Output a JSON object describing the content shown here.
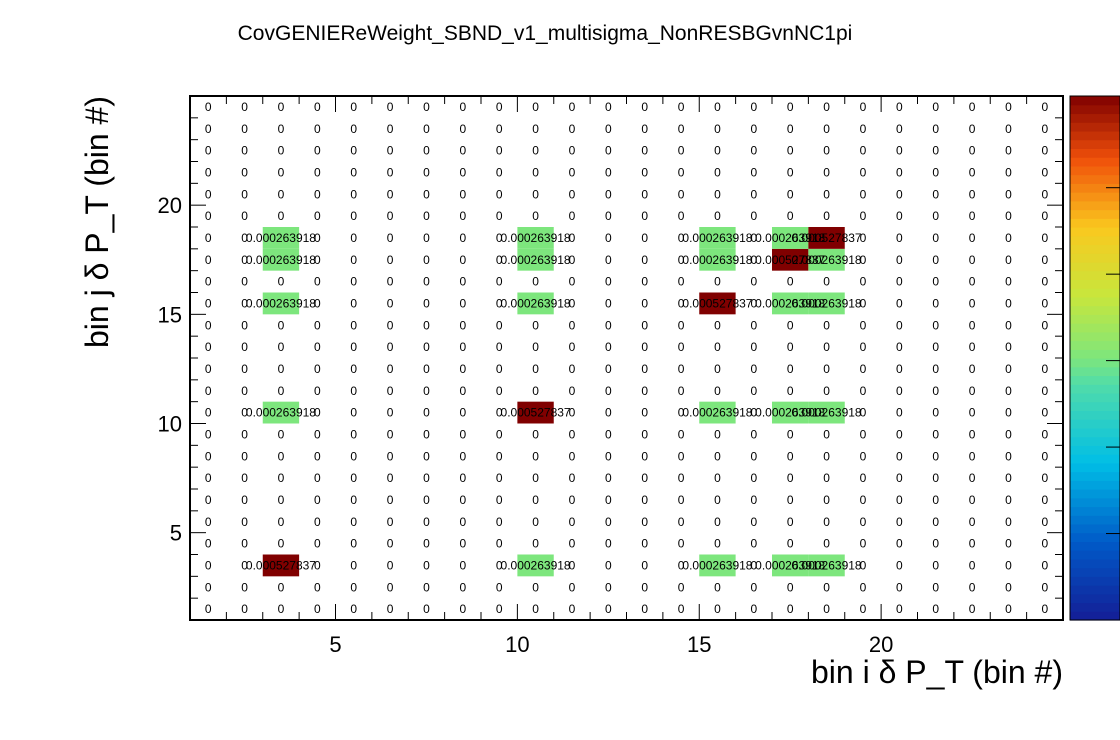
{
  "chart_data": {
    "type": "heatmap",
    "title": "CovGENIEReWeight_SBND_v1_multisigma_NonRESBGvnNC1pi",
    "xlabel": "bin i δ P_T (bin #)",
    "ylabel": "bin j δ P_T (bin #)",
    "x_range": [
      1,
      25
    ],
    "y_range": [
      1,
      25
    ],
    "x_ticks": [
      "5",
      "10",
      "15",
      "20"
    ],
    "y_ticks": [
      "5",
      "10",
      "15",
      "20"
    ],
    "z_range": [
      0,
      0.000527837
    ],
    "colorscale": "rainbow",
    "grid": false,
    "cell_labels": true,
    "nonzero_cells": [
      {
        "i": 3,
        "j": 3,
        "value": 0.000527837,
        "label": "0.000527837"
      },
      {
        "i": 10,
        "j": 3,
        "value": 0.000263918,
        "label": "0.000263918"
      },
      {
        "i": 15,
        "j": 3,
        "value": 0.000263918,
        "label": "0.000263918"
      },
      {
        "i": 17,
        "j": 3,
        "value": 0.000263918,
        "label": "0.000263918"
      },
      {
        "i": 18,
        "j": 3,
        "value": 0.000263918,
        "label": "0.000263918"
      },
      {
        "i": 3,
        "j": 10,
        "value": 0.000263918,
        "label": "0.000263918"
      },
      {
        "i": 10,
        "j": 10,
        "value": 0.000527837,
        "label": "0.000527837"
      },
      {
        "i": 15,
        "j": 10,
        "value": 0.000263918,
        "label": "0.000263918"
      },
      {
        "i": 17,
        "j": 10,
        "value": 0.000263918,
        "label": "0.000263918"
      },
      {
        "i": 18,
        "j": 10,
        "value": 0.000263918,
        "label": "0.000263918"
      },
      {
        "i": 3,
        "j": 15,
        "value": 0.000263918,
        "label": "0.000263918"
      },
      {
        "i": 10,
        "j": 15,
        "value": 0.000263918,
        "label": "0.000263918"
      },
      {
        "i": 15,
        "j": 15,
        "value": 0.000527837,
        "label": "0.000527837"
      },
      {
        "i": 17,
        "j": 15,
        "value": 0.000263918,
        "label": "0.000263918"
      },
      {
        "i": 18,
        "j": 15,
        "value": 0.000263918,
        "label": "0.000263918"
      },
      {
        "i": 3,
        "j": 17,
        "value": 0.000263918,
        "label": "0.000263918"
      },
      {
        "i": 10,
        "j": 17,
        "value": 0.000263918,
        "label": "0.000263918"
      },
      {
        "i": 15,
        "j": 17,
        "value": 0.000263918,
        "label": "0.000263918"
      },
      {
        "i": 17,
        "j": 17,
        "value": 0.000527837,
        "label": "0.000527837"
      },
      {
        "i": 18,
        "j": 17,
        "value": 0.000263918,
        "label": "0.000263918"
      },
      {
        "i": 3,
        "j": 18,
        "value": 0.000263918,
        "label": "0.000263918"
      },
      {
        "i": 10,
        "j": 18,
        "value": 0.000263918,
        "label": "0.000263918"
      },
      {
        "i": 15,
        "j": 18,
        "value": 0.000263918,
        "label": "0.000263918"
      },
      {
        "i": 17,
        "j": 18,
        "value": 0.000263918,
        "label": "0.000263918"
      },
      {
        "i": 18,
        "j": 18,
        "value": 0.000527837,
        "label": "0.000527837"
      }
    ],
    "zero_label": "0"
  }
}
